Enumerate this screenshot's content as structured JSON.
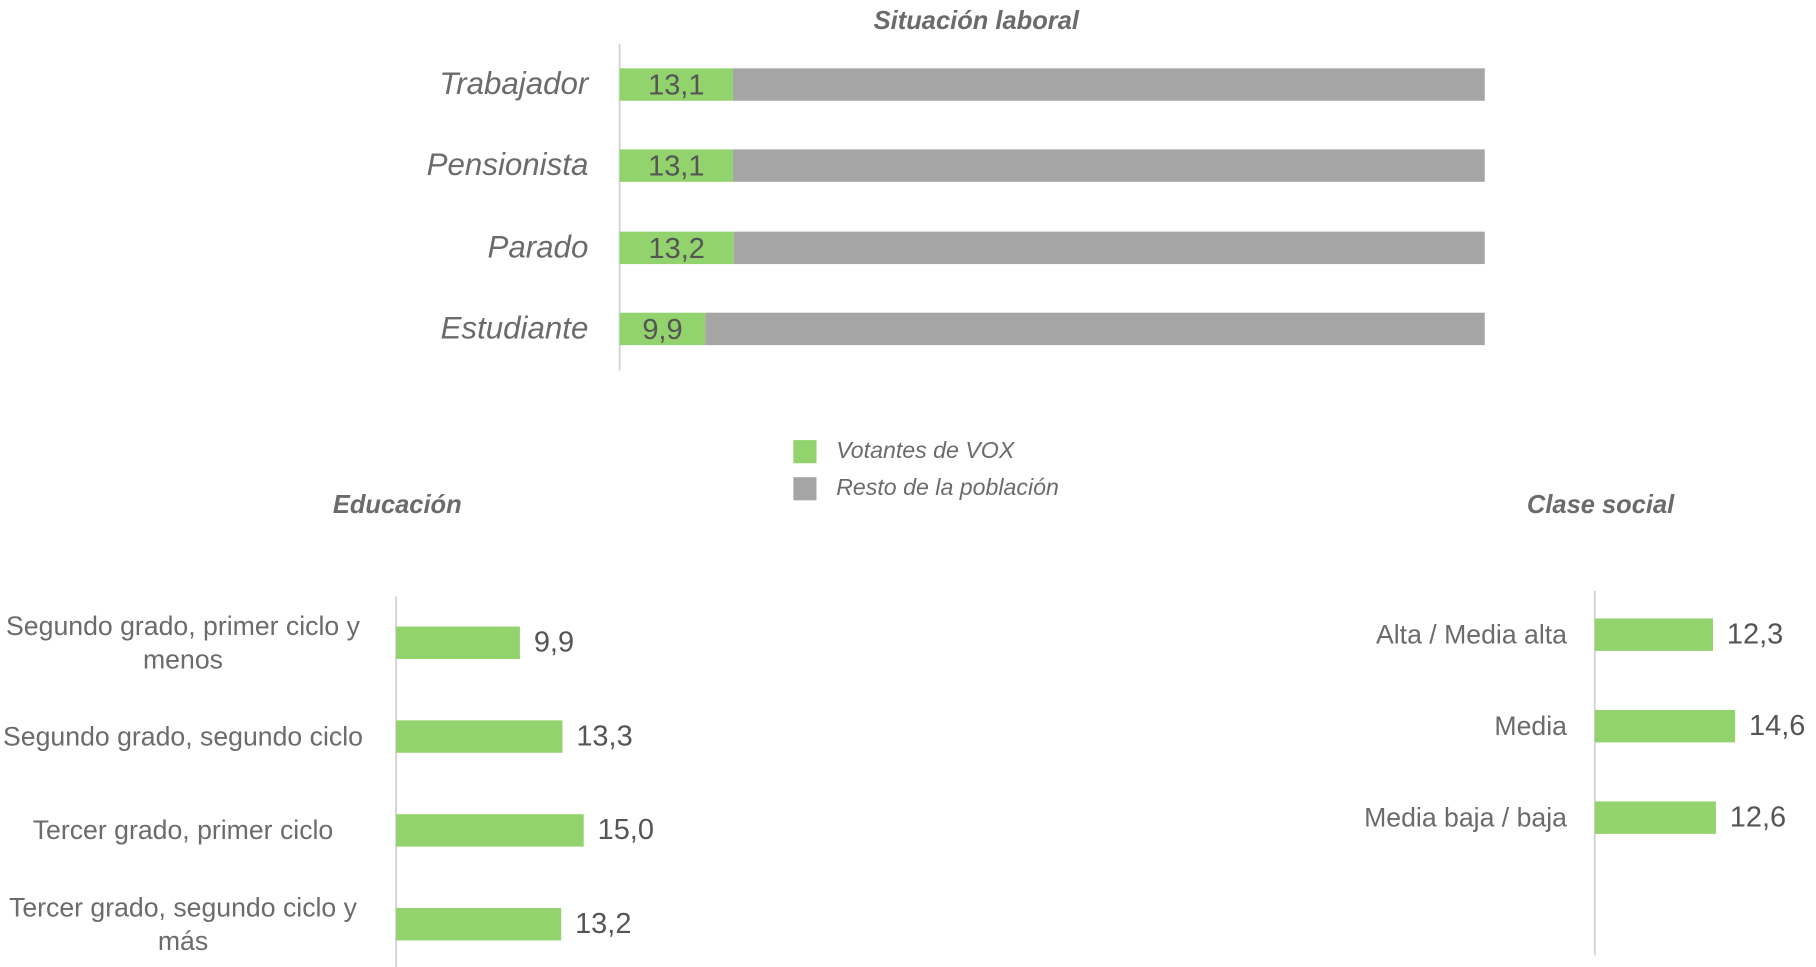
{
  "chart_data": [
    {
      "type": "stacked_bar",
      "title": "Situación laboral",
      "categories": [
        "Trabajador",
        "Pensionista",
        "Parado",
        "Estudiante"
      ],
      "series": [
        {
          "name": "Votantes de VOX",
          "color": "#92d36e",
          "values": [
            13.1,
            13.1,
            13.2,
            9.9
          ],
          "value_labels": [
            "13,1",
            "13,1",
            "13,2",
            "9,9"
          ]
        },
        {
          "name": "Resto de la población",
          "color": "#a5a5a5",
          "values": [
            86.9,
            86.9,
            86.8,
            90.1
          ]
        }
      ],
      "legend": "bottom"
    },
    {
      "type": "bar",
      "title": "Educación",
      "categories": [
        "Segundo grado, primer ciclo y menos",
        "Segundo grado, segundo ciclo",
        "Tercer grado, primer ciclo",
        "Tercer grado, segundo ciclo y más"
      ],
      "values": [
        9.9,
        13.3,
        15.0,
        13.2
      ],
      "value_labels": [
        "9,9",
        "13,3",
        "15,0",
        "13,2"
      ],
      "color": "#92d36e"
    },
    {
      "type": "bar",
      "title": "Clase social",
      "categories": [
        "Alta / Media alta",
        "Media",
        "Media baja / baja"
      ],
      "values": [
        12.3,
        14.6,
        12.6
      ],
      "value_labels": [
        "12,3",
        "14,6",
        "12,6"
      ],
      "color": "#92d36e"
    }
  ]
}
